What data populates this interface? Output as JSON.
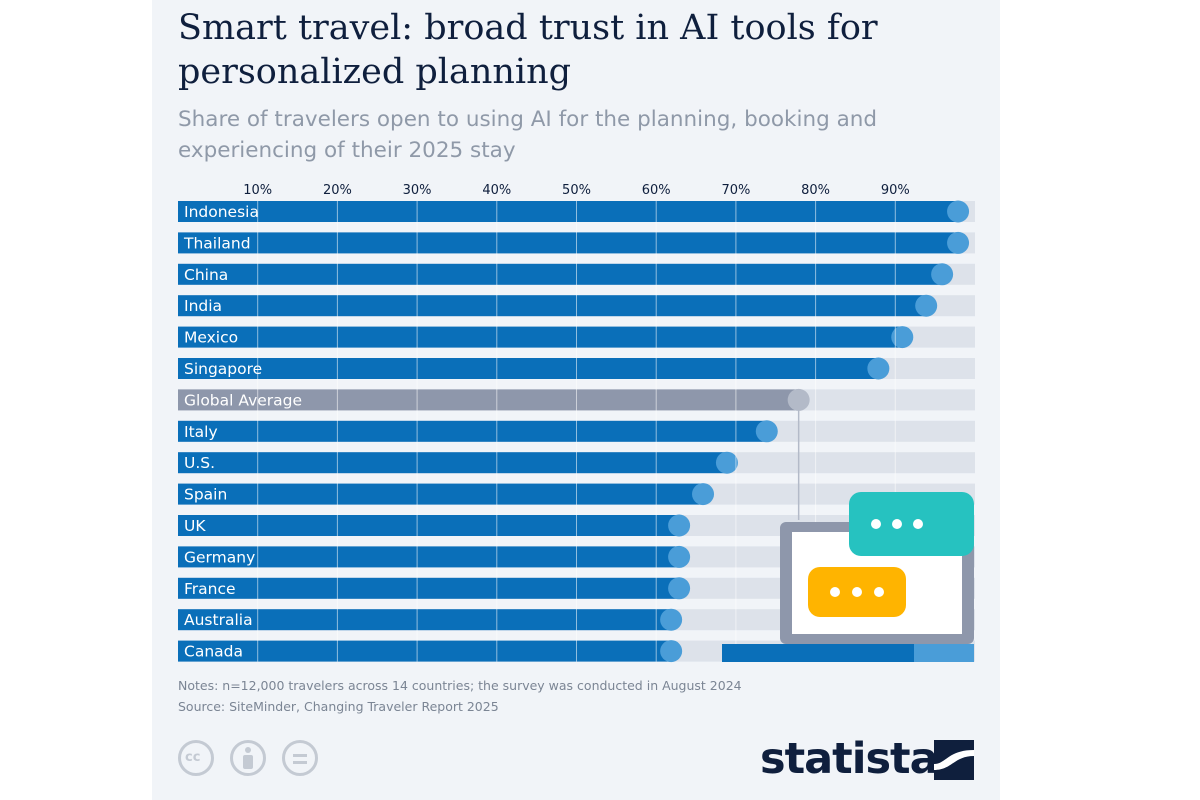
{
  "header": {
    "title": "Smart travel: broad trust in AI tools for personalized planning",
    "subtitle": "Share of travelers open to using AI for the planning, booking and experiencing of their 2025 stay"
  },
  "chart_data": {
    "type": "bar",
    "orientation": "horizontal",
    "categories": [
      "Indonesia",
      "Thailand",
      "China",
      "India",
      "Mexico",
      "Singapore",
      "Global Average",
      "Italy",
      "U.S.",
      "Spain",
      "UK",
      "Germany",
      "France",
      "Australia",
      "Canada"
    ],
    "values": [
      98,
      98,
      96,
      94,
      91,
      88,
      78,
      74,
      69,
      66,
      63,
      63,
      63,
      62,
      62
    ],
    "highlight_category": "Global Average",
    "x_ticks": [
      "10%",
      "20%",
      "30%",
      "40%",
      "50%",
      "60%",
      "70%",
      "80%",
      "90%"
    ],
    "xlim": [
      0,
      100
    ],
    "grid": true,
    "colors": {
      "bar": "#0a6fb9",
      "bar_end": "#4a9dd8",
      "highlight_bar": "#8e97ab",
      "highlight_end": "#b3bac8",
      "track": "#dde2ea"
    }
  },
  "footer": {
    "notes": "Notes: n=12,000 travelers across 14 countries; the survey was conducted in August 2024",
    "source": "Source: SiteMinder, Changing Traveler Report 2025",
    "brand": "statista",
    "license_icons": [
      "cc-icon",
      "attribution-icon",
      "no-derivatives-icon"
    ]
  }
}
